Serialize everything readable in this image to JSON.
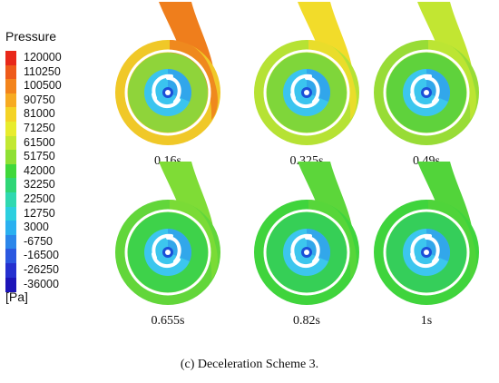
{
  "legend": {
    "title": "Pressure",
    "unit": "[Pa]",
    "levels": [
      "120000",
      "110250",
      "100500",
      "90750",
      "81000",
      "71250",
      "61500",
      "51750",
      "42000",
      "32250",
      "22500",
      "12750",
      "3000",
      "-6750",
      "-16500",
      "-26250",
      "-36000"
    ],
    "colors": [
      "#e8281a",
      "#ee5a1a",
      "#f3841c",
      "#f7ab22",
      "#f4d326",
      "#e8ec2d",
      "#c2e832",
      "#8fe034",
      "#3fd83a",
      "#2fd676",
      "#2fd8b0",
      "#2ccfdf",
      "#2ab0f0",
      "#2b86ea",
      "#2b58e0",
      "#2530cf",
      "#1c14b8"
    ]
  },
  "panels": [
    {
      "time": "0.16s",
      "volute": "#f0c828",
      "tongue": "#ef7e1c",
      "inner": "#8fd43a",
      "hub": "#3ac4ef"
    },
    {
      "time": "0.325s",
      "volute": "#b6e234",
      "tongue": "#f2dc2a",
      "inner": "#7fd63a",
      "hub": "#3ac4ef"
    },
    {
      "time": "0.49s",
      "volute": "#98dc36",
      "tongue": "#c2e632",
      "inner": "#5fd23c",
      "hub": "#3cc6ee"
    },
    {
      "time": "0.655s",
      "volute": "#62d63a",
      "tongue": "#7fdc36",
      "inner": "#3ed24a",
      "hub": "#3cc6ee"
    },
    {
      "time": "0.82s",
      "volute": "#3fd43c",
      "tongue": "#5cd63a",
      "inner": "#36cf56",
      "hub": "#3cc6ee"
    },
    {
      "time": "1s",
      "volute": "#3fd43c",
      "tongue": "#52d43a",
      "inner": "#35ce5a",
      "hub": "#3cc6ee"
    }
  ],
  "caption": "(c) Deceleration Scheme 3."
}
